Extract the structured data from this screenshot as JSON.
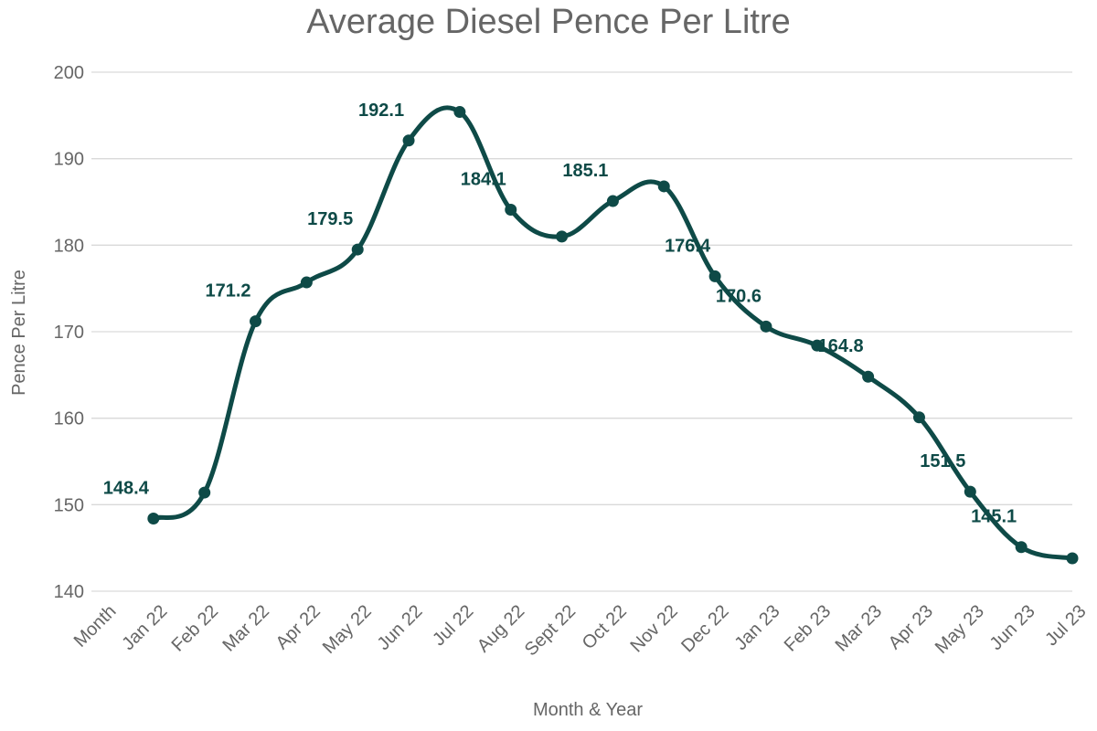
{
  "colors": {
    "series": "#0e4a47",
    "grid": "#d9d9d9",
    "text": "#666666"
  },
  "chart_data": {
    "type": "line",
    "title": "Average Diesel Pence Per Litre",
    "xlabel": "Month & Year",
    "ylabel": "Pence Per Litre",
    "ylim": [
      140,
      200
    ],
    "yticks": [
      140,
      150,
      160,
      170,
      180,
      190,
      200
    ],
    "grid": true,
    "smooth": true,
    "categories": [
      "Month",
      "Jan 22",
      "Feb 22",
      "Mar 22",
      "Apr 22",
      "May 22",
      "Jun 22",
      "Jul 22",
      "Aug 22",
      "Sept 22",
      "Oct 22",
      "Nov 22",
      "Dec 22",
      "Jan 23",
      "Feb 23",
      "Mar 23",
      "Apr 23",
      "May 23",
      "Jun 23",
      "Jul 23"
    ],
    "series": [
      {
        "name": "Average Diesel Pence Per Litre",
        "values": [
          null,
          148.4,
          151.4,
          171.2,
          175.7,
          179.5,
          192.1,
          195.4,
          184.1,
          181.0,
          185.1,
          186.8,
          176.4,
          170.6,
          168.4,
          164.8,
          160.1,
          151.5,
          145.1,
          143.8
        ],
        "labels": [
          "",
          "148.4",
          "",
          "171.2",
          "",
          "179.5",
          "192.1",
          "",
          "184.1",
          "",
          "185.1",
          "",
          "176.4",
          "170.6",
          "",
          "164.8",
          "",
          "151.5",
          "145.1",
          ""
        ]
      }
    ]
  }
}
